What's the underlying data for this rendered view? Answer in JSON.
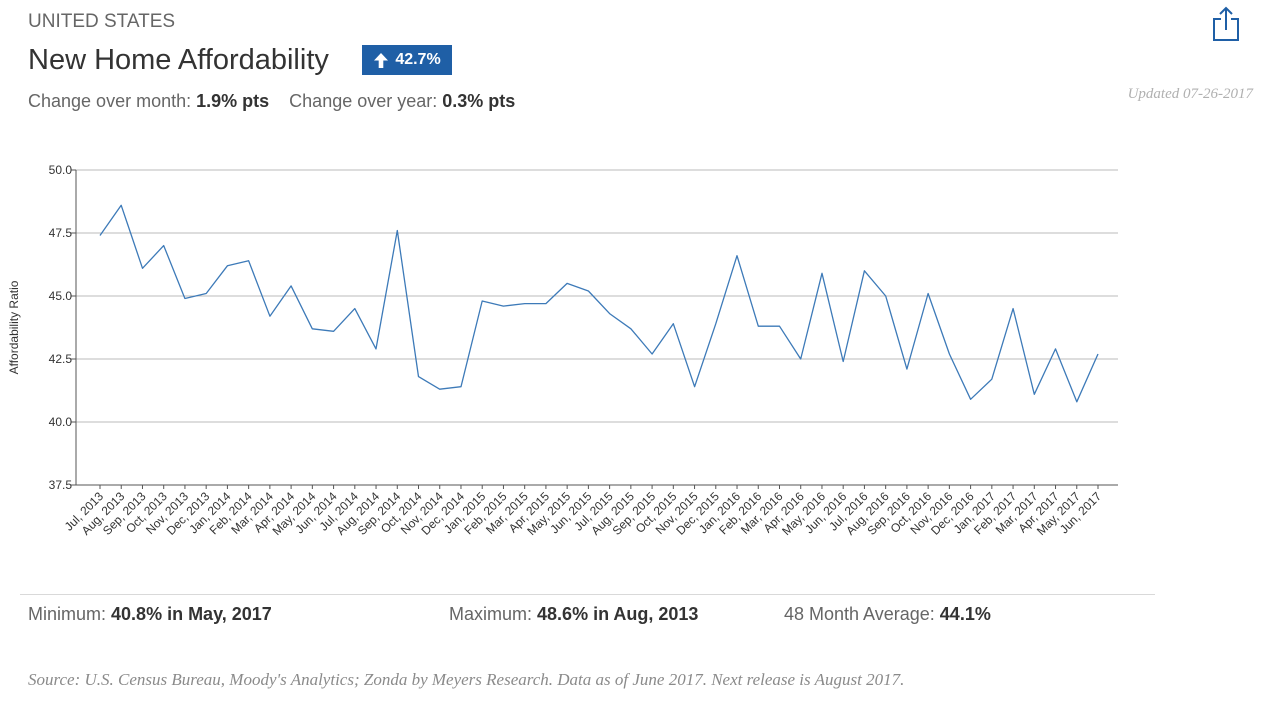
{
  "header": {
    "region": "UNITED STATES",
    "title": "New Home Affordability",
    "badge_value": "42.7%",
    "badge_icon": "arrow-up-icon",
    "change_month_label": "Change over month:",
    "change_month_value": "1.9% pts",
    "change_year_label": "Change over year:",
    "change_year_value": "0.3% pts",
    "updated": "Updated 07-26-2017",
    "share_icon": "share-icon"
  },
  "colors": {
    "accent": "#1f5fa6",
    "line": "#3d7ab8",
    "grid": "#bbbbbb"
  },
  "chart_data": {
    "type": "line",
    "ylabel": "Affordability Ratio",
    "xlabel": "",
    "ylim": [
      37.5,
      50.0
    ],
    "yticks": [
      "50.0",
      "47.5",
      "45.0",
      "42.5",
      "40.0",
      "37.5"
    ],
    "grid": true,
    "categories": [
      "Jul, 2013",
      "Aug, 2013",
      "Sep, 2013",
      "Oct, 2013",
      "Nov, 2013",
      "Dec, 2013",
      "Jan, 2014",
      "Feb, 2014",
      "Mar, 2014",
      "Apr, 2014",
      "May, 2014",
      "Jun, 2014",
      "Jul, 2014",
      "Aug, 2014",
      "Sep, 2014",
      "Oct, 2014",
      "Nov, 2014",
      "Dec, 2014",
      "Jan, 2015",
      "Feb, 2015",
      "Mar, 2015",
      "Apr, 2015",
      "May, 2015",
      "Jun, 2015",
      "Jul, 2015",
      "Aug, 2015",
      "Sep, 2015",
      "Oct, 2015",
      "Nov, 2015",
      "Dec, 2015",
      "Jan, 2016",
      "Feb, 2016",
      "Mar, 2016",
      "Apr, 2016",
      "May, 2016",
      "Jun, 2016",
      "Jul, 2016",
      "Aug, 2016",
      "Sep, 2016",
      "Oct, 2016",
      "Nov, 2016",
      "Dec, 2016",
      "Jan, 2017",
      "Feb, 2017",
      "Mar, 2017",
      "Apr, 2017",
      "May, 2017",
      "Jun, 2017"
    ],
    "values": [
      47.4,
      48.6,
      46.1,
      47.0,
      44.9,
      45.1,
      46.2,
      46.4,
      44.2,
      45.4,
      43.7,
      43.6,
      44.5,
      42.9,
      47.6,
      41.8,
      41.3,
      41.4,
      44.8,
      44.6,
      44.7,
      44.7,
      45.5,
      45.2,
      44.3,
      43.7,
      42.7,
      43.9,
      41.4,
      43.9,
      46.6,
      43.8,
      43.8,
      42.5,
      45.9,
      42.4,
      46.0,
      45.0,
      42.1,
      45.1,
      42.7,
      40.9,
      41.7,
      44.5,
      41.1,
      42.9,
      40.8,
      42.7
    ]
  },
  "stats": {
    "min_label": "Minimum:",
    "min_value": "40.8% in May, 2017",
    "max_label": "Maximum:",
    "max_value": "48.6% in Aug, 2013",
    "avg_label": "48 Month Average:",
    "avg_value": "44.1%"
  },
  "source": "Source: U.S. Census Bureau, Moody's Analytics; Zonda by Meyers Research. Data as of June 2017. Next release is August 2017."
}
